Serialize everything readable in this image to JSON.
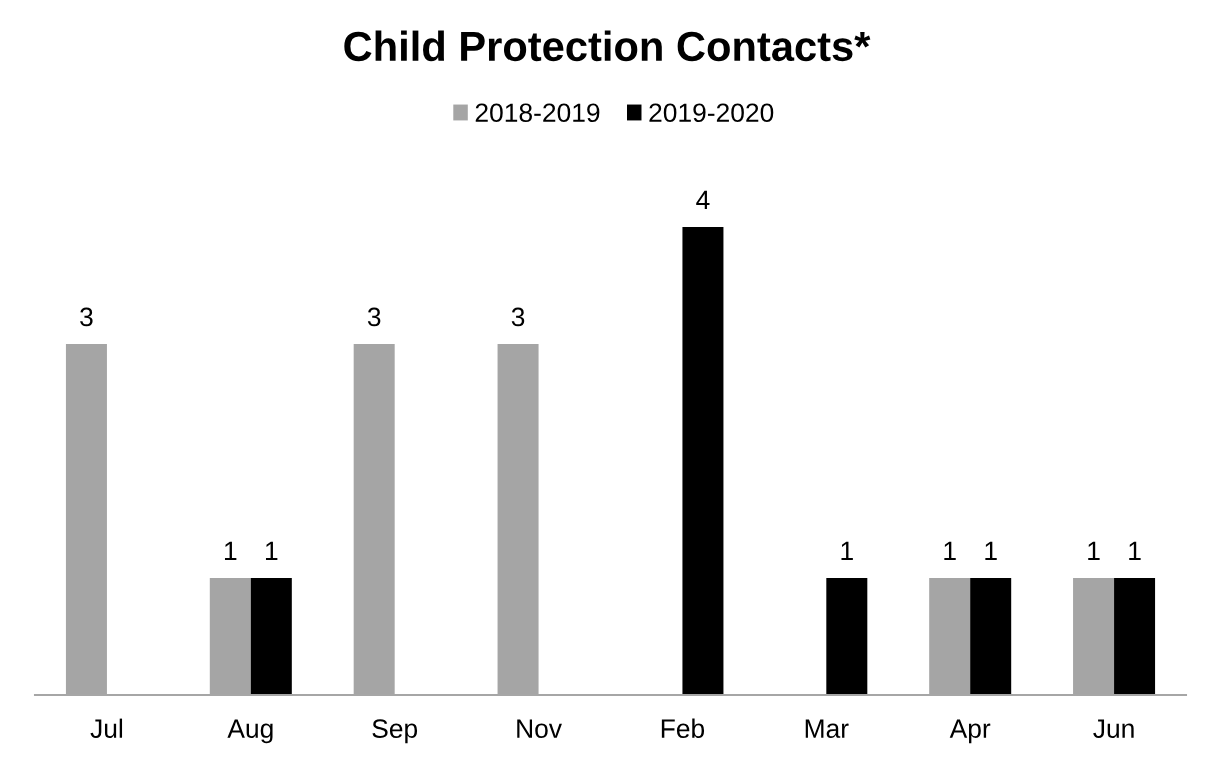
{
  "chart_data": {
    "type": "bar",
    "title": "Child Protection Contacts*",
    "categories": [
      "Jul",
      "Aug",
      "Sep",
      "Nov",
      "Feb",
      "Mar",
      "Apr",
      "Jun"
    ],
    "series": [
      {
        "name": "2018-2019",
        "color": "#a5a5a5",
        "values": [
          3,
          1,
          3,
          3,
          null,
          null,
          1,
          1
        ]
      },
      {
        "name": "2019-2020",
        "color": "#000000",
        "values": [
          null,
          1,
          null,
          null,
          4,
          1,
          1,
          1
        ]
      }
    ],
    "tick_labels": "x",
    "data_labels": true,
    "legend": "top"
  }
}
